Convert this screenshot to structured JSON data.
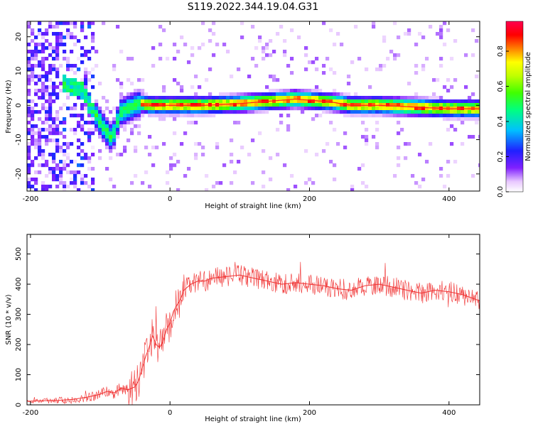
{
  "title": "S119.2022.344.19.04.G31",
  "chart_data": [
    {
      "type": "heatmap",
      "xlabel": "Height of straight line (km)",
      "ylabel": "Frequency (Hz)",
      "xlim": [
        -205,
        444
      ],
      "ylim": [
        -25,
        24.5
      ],
      "xticks": [
        -200,
        0,
        200,
        400
      ],
      "yticks": [
        -20,
        -10,
        0,
        10,
        20
      ],
      "colorbar": {
        "label": "Normalized spectral amplitude",
        "range": [
          0,
          0.97
        ],
        "ticks": [
          0.0,
          0.2,
          0.4,
          0.6,
          0.8
        ]
      },
      "dominant_track": {
        "x": [
          -150,
          -140,
          -125,
          -115,
          -100,
          -90,
          -82,
          -78,
          -74,
          -70,
          -60,
          -50,
          -40,
          -30,
          0,
          50,
          100,
          130,
          160,
          180,
          200,
          230,
          260,
          300,
          350,
          400,
          444
        ],
        "freq": [
          6,
          5.5,
          4.5,
          0,
          -5,
          -8,
          -10,
          -6,
          -4,
          -2,
          -1,
          0,
          0.5,
          0,
          0,
          0,
          0.5,
          1,
          1.5,
          1.8,
          1.5,
          1,
          0,
          0,
          -0.5,
          -1,
          -1
        ]
      },
      "grid": false
    },
    {
      "type": "line",
      "xlabel": "Height of straight line (km)",
      "ylabel": "SNR (10 * v/v)",
      "xlim": [
        -205,
        444
      ],
      "ylim": [
        0,
        565
      ],
      "xticks": [
        -200,
        0,
        200,
        400
      ],
      "yticks": [
        0,
        100,
        200,
        300,
        400,
        500
      ],
      "series": [
        {
          "color": "#f03030",
          "x": [
            -205,
            -180,
            -160,
            -140,
            -120,
            -100,
            -90,
            -80,
            -70,
            -60,
            -50,
            -45,
            -40,
            -35,
            -30,
            -25,
            -20,
            -15,
            -10,
            -5,
            0,
            5,
            10,
            15,
            20,
            25,
            30,
            40,
            50,
            60,
            80,
            100,
            120,
            140,
            160,
            180,
            200,
            220,
            240,
            260,
            280,
            300,
            320,
            340,
            360,
            380,
            400,
            420,
            444
          ],
          "y": [
            12,
            14,
            15,
            18,
            25,
            35,
            45,
            40,
            55,
            50,
            60,
            80,
            120,
            160,
            190,
            230,
            200,
            190,
            210,
            250,
            270,
            310,
            330,
            350,
            380,
            390,
            400,
            410,
            410,
            420,
            425,
            430,
            420,
            410,
            400,
            405,
            400,
            395,
            385,
            380,
            395,
            400,
            390,
            380,
            370,
            380,
            375,
            365,
            345
          ]
        }
      ],
      "grid": false
    }
  ]
}
